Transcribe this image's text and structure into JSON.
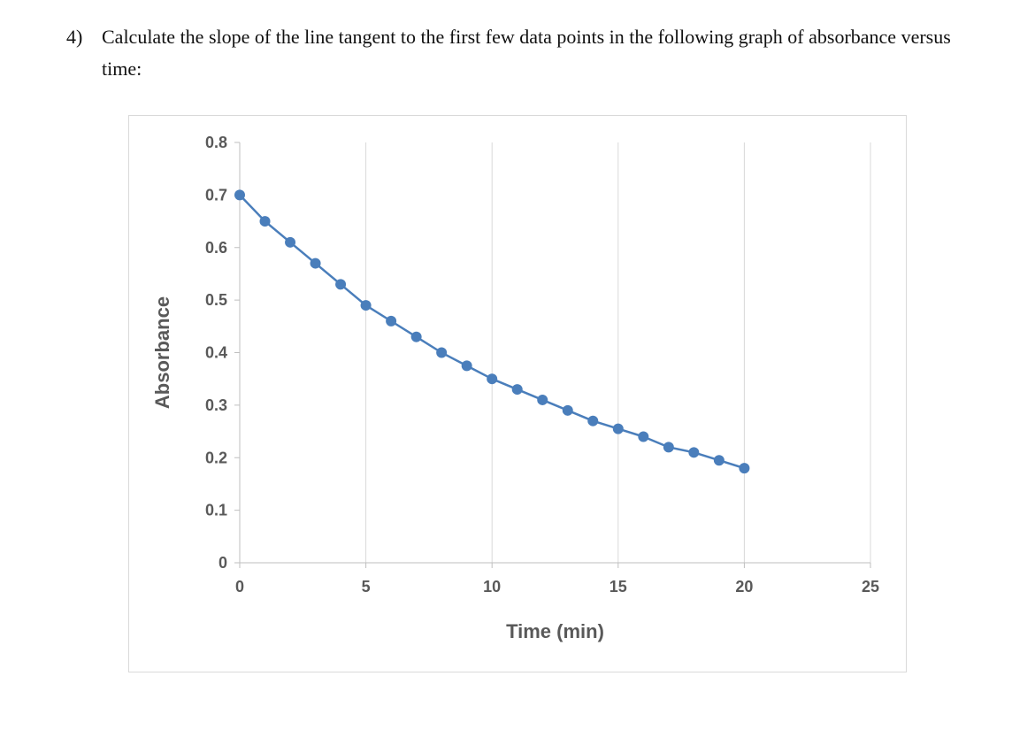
{
  "question": {
    "number": "4)",
    "text": "Calculate the slope of the line tangent to the first few data points in the following graph of absorbance versus time:"
  },
  "chart_data": {
    "type": "line",
    "title": "",
    "xlabel": "Time (min)",
    "ylabel": "Absorbance",
    "x": [
      0,
      1,
      2,
      3,
      4,
      5,
      6,
      7,
      8,
      9,
      10,
      11,
      12,
      13,
      14,
      15,
      16,
      17,
      18,
      19,
      20
    ],
    "y": [
      0.7,
      0.65,
      0.61,
      0.57,
      0.53,
      0.49,
      0.46,
      0.43,
      0.4,
      0.375,
      0.35,
      0.33,
      0.31,
      0.29,
      0.27,
      0.255,
      0.24,
      0.22,
      0.21,
      0.195,
      0.18
    ],
    "x_ticks": [
      0,
      5,
      10,
      15,
      20,
      25
    ],
    "y_ticks": [
      0,
      0.1,
      0.2,
      0.3,
      0.4,
      0.5,
      0.6,
      0.7,
      0.8
    ],
    "xlim": [
      0,
      25
    ],
    "ylim": [
      0,
      0.8
    ],
    "grid": {
      "vertical": true,
      "horizontal": false
    },
    "legend": "none",
    "marker": "circle",
    "colors": {
      "line": "#4A7EBB",
      "marker": "#4A7EBB",
      "axis_text": "#595959",
      "gridline": "#D9D9D9",
      "axis_line": "#BFBFBF"
    }
  }
}
